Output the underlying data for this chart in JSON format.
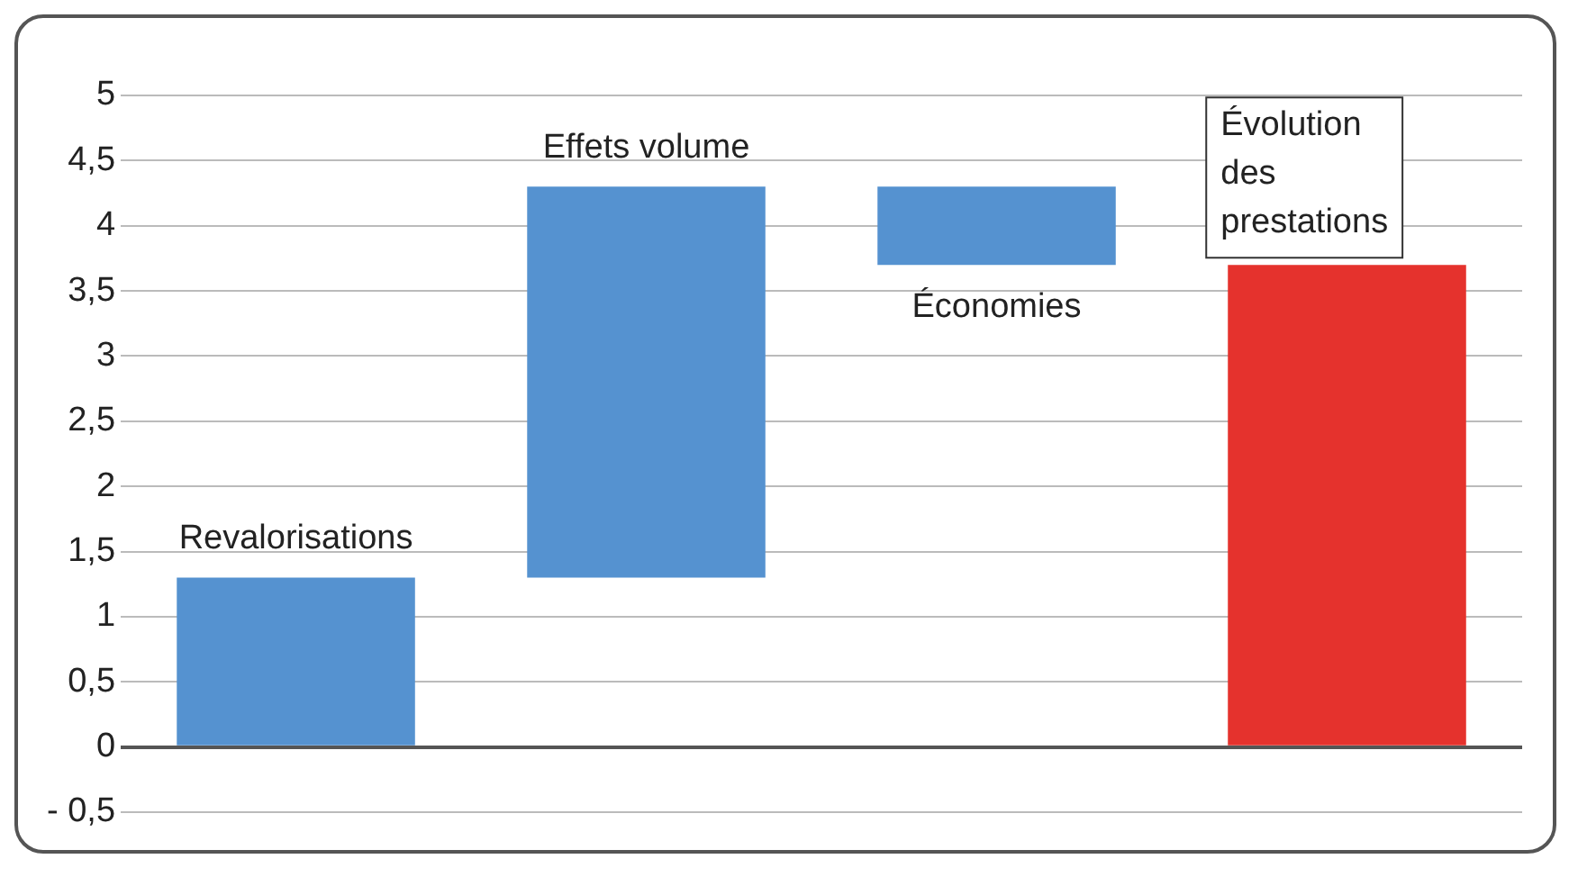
{
  "chart_data": {
    "type": "bar",
    "categories": [
      "Revalorisations",
      "Effets volume",
      "Économies",
      "Évolution des prestations"
    ],
    "values": [
      1.3,
      3.0,
      -0.6,
      3.7
    ],
    "base": [
      0,
      1.3,
      4.3,
      0
    ],
    "colors": [
      "#5592d0",
      "#5592d0",
      "#5592d0",
      "#e5322d"
    ],
    "ylim": [
      -0.5,
      5
    ],
    "yticks": [
      {
        "value": -0.5,
        "label": "- 0,5"
      },
      0,
      {
        "value": 0.5,
        "label": "0,5"
      },
      1,
      {
        "value": 1.5,
        "label": "1,5"
      },
      2,
      {
        "value": 2.5,
        "label": "2,5"
      },
      3,
      {
        "value": 3.5,
        "label": "3,5"
      },
      4,
      {
        "value": 4.5,
        "label": "4,5"
      },
      5
    ],
    "grid": "y",
    "legend": false
  }
}
